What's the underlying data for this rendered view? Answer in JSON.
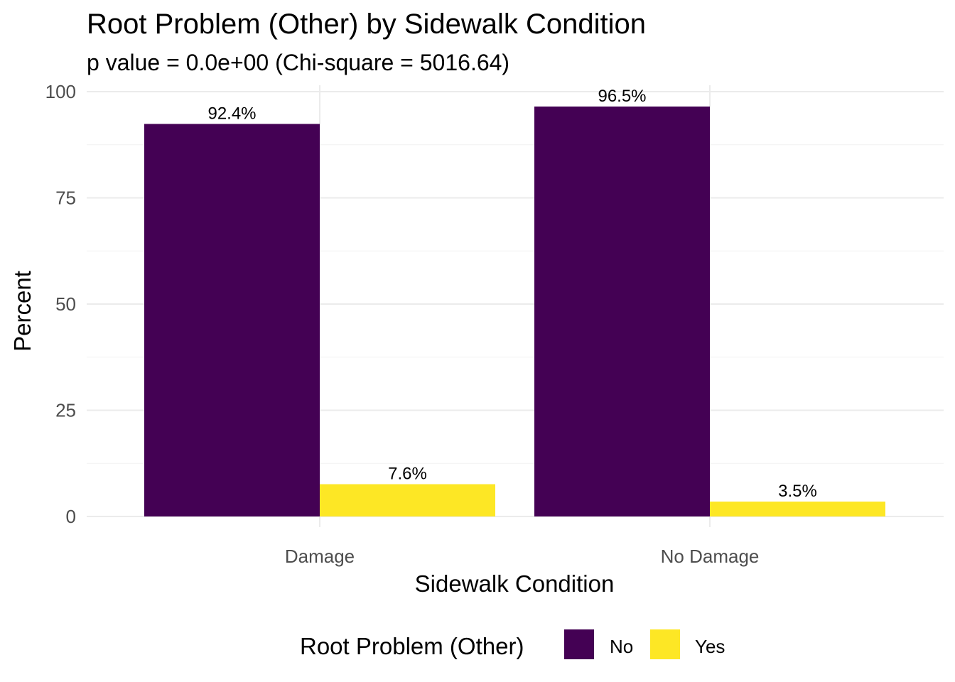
{
  "chart_data": {
    "type": "bar",
    "title": "Root Problem (Other) by Sidewalk Condition",
    "subtitle": "p value = 0.0e+00 (Chi-square = 5016.64)",
    "xlabel": "Sidewalk Condition",
    "ylabel": "Percent",
    "categories": [
      "Damage",
      "No Damage"
    ],
    "series": [
      {
        "name": "No",
        "color": "#440154",
        "values": [
          92.4,
          96.5
        ],
        "labels": [
          "92.4%",
          "96.5%"
        ]
      },
      {
        "name": "Yes",
        "color": "#FDE725",
        "values": [
          7.6,
          3.5
        ],
        "labels": [
          "7.6%",
          "3.5%"
        ]
      }
    ],
    "ylim": [
      0,
      100
    ],
    "yticks": [
      0,
      25,
      50,
      75,
      100
    ],
    "grid": true,
    "legend": {
      "title": "Root Problem (Other)",
      "position": "bottom"
    }
  }
}
